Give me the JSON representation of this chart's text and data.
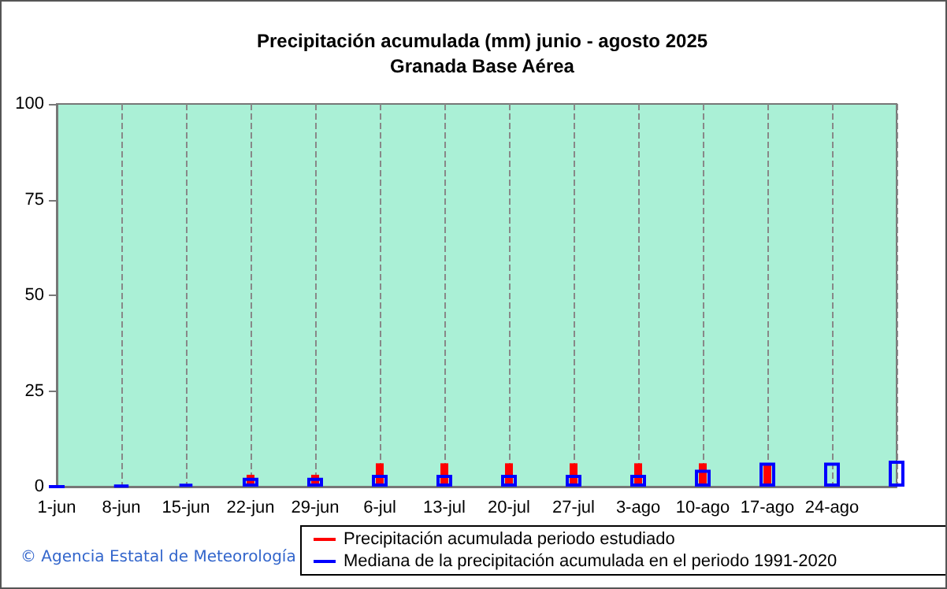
{
  "chart_data": {
    "type": "bar",
    "title": "Precipitación acumulada (mm) junio - agosto 2025",
    "subtitle": "Granada Base Aérea",
    "categories": [
      "1-jun",
      "8-jun",
      "15-jun",
      "22-jun",
      "29-jun",
      "6-jul",
      "13-jul",
      "20-jul",
      "27-jul",
      "3-ago",
      "10-ago",
      "17-ago",
      "24-ago",
      null
    ],
    "series": [
      {
        "name": "Precipitación acumulada periodo estudiado",
        "color": "#ff0000",
        "values": [
          0,
          0,
          0,
          3.1,
          3.1,
          6.1,
          6.1,
          6.1,
          6.1,
          6.1,
          6.1,
          6.1,
          null,
          null
        ]
      },
      {
        "name": "Mediana de la precipitación acumulada en el periodo 1991-2020",
        "color": "#0000ff",
        "values": [
          0,
          0.3,
          0.7,
          2.3,
          2.3,
          3.1,
          3.1,
          3.1,
          3.1,
          3.1,
          4.4,
          6.3,
          6.3,
          6.8
        ]
      }
    ],
    "ylim": [
      0,
      100
    ],
    "yticks": [
      0,
      25,
      50,
      75,
      100
    ],
    "grid": "x",
    "legend": "bottom",
    "annotations": [
      "© Agencia Estatal de Meteorología"
    ]
  }
}
